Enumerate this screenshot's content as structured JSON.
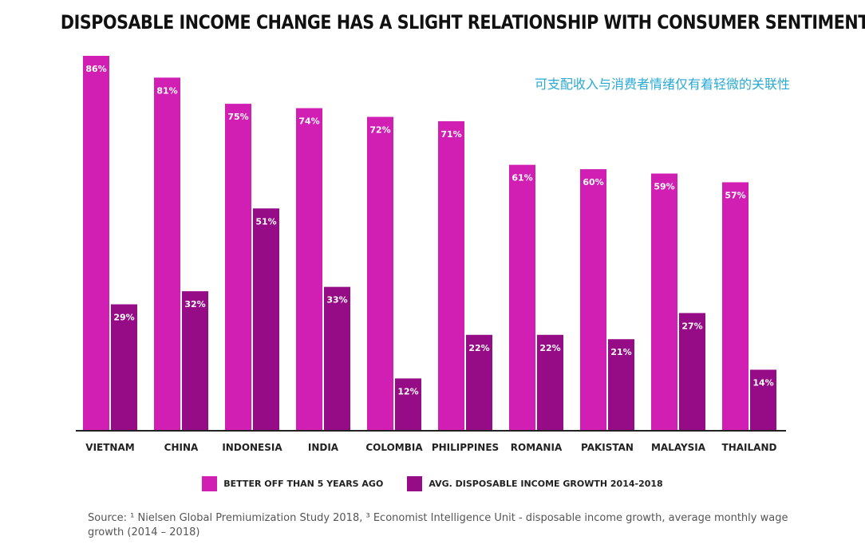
{
  "chart_data": {
    "type": "bar",
    "title": "DISPOSABLE INCOME CHANGE HAS A SLIGHT RELATIONSHIP WITH CONSUMER SENTIMENT",
    "subtitle": "可支配收入与消费者情绪仅有着轻微的关联性",
    "categories": [
      "VIETNAM",
      "CHINA",
      "INDONESIA",
      "INDIA",
      "COLOMBIA",
      "PHILIPPINES",
      "ROMANIA",
      "PAKISTAN",
      "MALAYSIA",
      "THAILAND"
    ],
    "series": [
      {
        "name": "BETTER OFF THAN 5 YEARS AGO",
        "color": "#d11fb4",
        "values": [
          86,
          81,
          75,
          74,
          72,
          71,
          61,
          60,
          59,
          57
        ],
        "labels": [
          "86%",
          "81%",
          "75%",
          "74%",
          "72%",
          "71%",
          "61%",
          "60%",
          "59%",
          "57%"
        ]
      },
      {
        "name": "AVG. DISPOSABLE INCOME GROWTH 2014-2018",
        "color": "#960c87",
        "values": [
          29,
          32,
          51,
          33,
          12,
          22,
          22,
          21,
          27,
          14
        ],
        "labels": [
          "29%",
          "32%",
          "51%",
          "33%",
          "12%",
          "22%",
          "22%",
          "21%",
          "27%",
          "14%"
        ]
      }
    ],
    "ylim": [
      0,
      86
    ],
    "grid": false,
    "legend_position": "bottom",
    "source": "Source: ¹ Nielsen Global Premiumization Study 2018, ³ Economist Intelligence Unit - disposable income growth, average monthly wage growth (2014 – 2018)"
  }
}
